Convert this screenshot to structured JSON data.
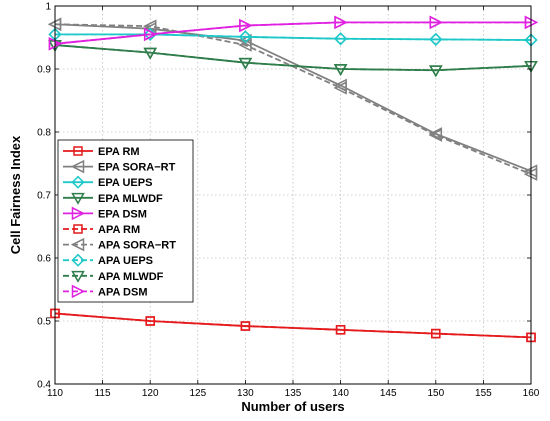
{
  "chart_data": {
    "type": "line",
    "xlabel": "Number of users",
    "ylabel": "Cell Fairness Index",
    "xlim": [
      110,
      160
    ],
    "ylim": [
      0.4,
      1.0
    ],
    "x_ticks": [
      "110",
      "115",
      "120",
      "125",
      "130",
      "135",
      "140",
      "145",
      "150",
      "155",
      "160"
    ],
    "y_ticks": [
      "0.4",
      "0.5",
      "0.6",
      "0.7",
      "0.8",
      "0.9",
      "1"
    ],
    "grid": true,
    "legend_position": "left",
    "x": [
      110,
      120,
      130,
      140,
      150,
      160
    ],
    "series": [
      {
        "name": "EPA RM",
        "values": [
          0.512,
          0.5,
          0.492,
          0.486,
          0.48,
          0.474
        ],
        "color": "#e41a1c",
        "marker": "square",
        "dash": false
      },
      {
        "name": "EPA SORA−RT",
        "values": [
          0.971,
          0.964,
          0.945,
          0.874,
          0.797,
          0.738
        ],
        "color": "#808080",
        "marker": "triangle-left",
        "dash": false
      },
      {
        "name": "EPA UEPS",
        "values": [
          0.955,
          0.955,
          0.951,
          0.948,
          0.947,
          0.946
        ],
        "color": "#1ec8c8",
        "marker": "diamond",
        "dash": false
      },
      {
        "name": "EPA MLWDF",
        "values": [
          0.938,
          0.926,
          0.91,
          0.9,
          0.898,
          0.905
        ],
        "color": "#2e7d4a",
        "marker": "triangle-down",
        "dash": false
      },
      {
        "name": "EPA DSM",
        "values": [
          0.94,
          0.955,
          0.969,
          0.974,
          0.974,
          0.974
        ],
        "color": "#e021e0",
        "marker": "triangle-right",
        "dash": false
      },
      {
        "name": "APA RM",
        "values": [
          0.512,
          0.5,
          0.492,
          0.486,
          0.48,
          0.474
        ],
        "color": "#e41a1c",
        "marker": "square",
        "dash": true
      },
      {
        "name": "APA SORA−RT",
        "values": [
          0.971,
          0.968,
          0.938,
          0.87,
          0.795,
          0.733
        ],
        "color": "#808080",
        "marker": "triangle-left",
        "dash": true
      },
      {
        "name": "APA UEPS",
        "values": [
          0.955,
          0.955,
          0.951,
          0.948,
          0.947,
          0.946
        ],
        "color": "#1ec8c8",
        "marker": "diamond",
        "dash": true
      },
      {
        "name": "APA MLWDF",
        "values": [
          0.938,
          0.926,
          0.91,
          0.9,
          0.898,
          0.905
        ],
        "color": "#2e7d4a",
        "marker": "triangle-down",
        "dash": true
      },
      {
        "name": "APA DSM",
        "values": [
          0.94,
          0.955,
          0.969,
          0.974,
          0.974,
          0.974
        ],
        "color": "#e021e0",
        "marker": "triangle-right",
        "dash": true
      }
    ]
  }
}
